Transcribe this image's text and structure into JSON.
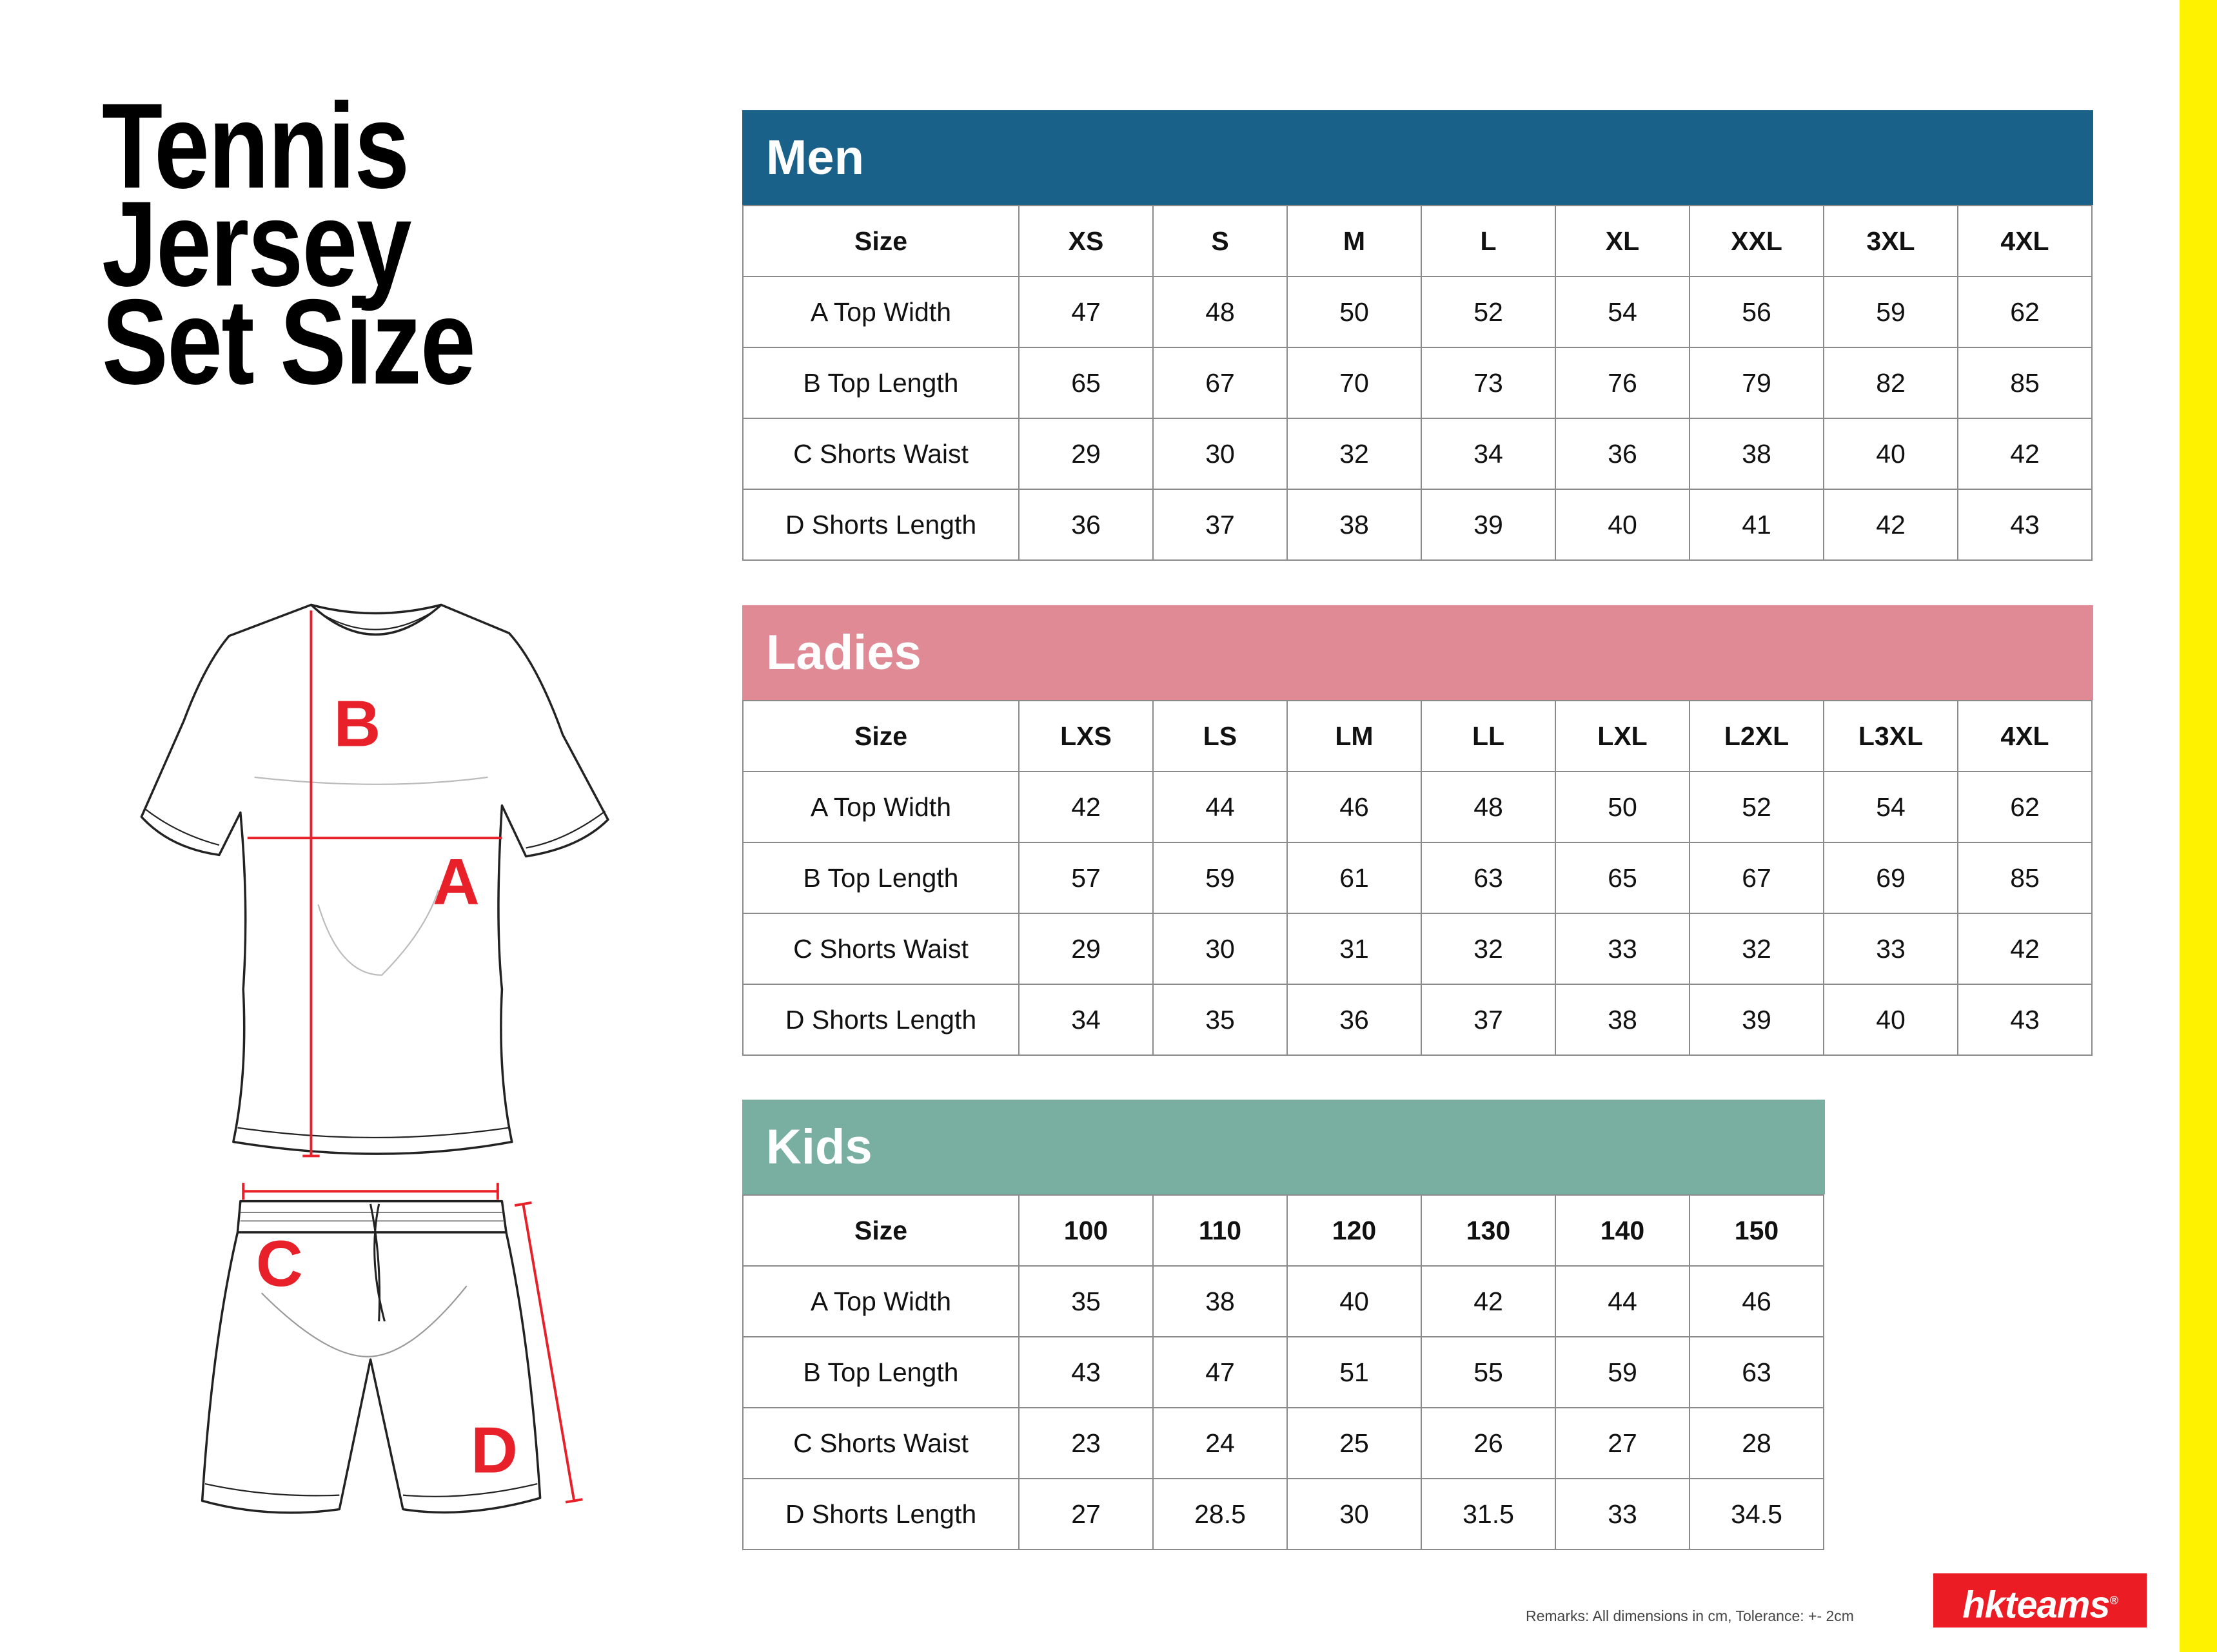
{
  "title": {
    "line1": "Tennis",
    "line2": "Jersey",
    "line3": "Set Size"
  },
  "illustration": {
    "labels": [
      "A",
      "B",
      "C",
      "D"
    ],
    "marker_color": "#e8202a"
  },
  "tables": [
    {
      "id": "men",
      "name": "Men",
      "color": "#1a6189",
      "header": [
        "Size",
        "XS",
        "S",
        "M",
        "L",
        "XL",
        "XXL",
        "3XL",
        "4XL"
      ],
      "rows": [
        [
          "A Top Width",
          "47",
          "48",
          "50",
          "52",
          "54",
          "56",
          "59",
          "62"
        ],
        [
          "B Top Length",
          "65",
          "67",
          "70",
          "73",
          "76",
          "79",
          "82",
          "85"
        ],
        [
          "C Shorts Waist",
          "29",
          "30",
          "32",
          "34",
          "36",
          "38",
          "40",
          "42"
        ],
        [
          "D Shorts Length",
          "36",
          "37",
          "38",
          "39",
          "40",
          "41",
          "42",
          "43"
        ]
      ]
    },
    {
      "id": "ladies",
      "name": "Ladies",
      "color": "#e08a96",
      "header": [
        "Size",
        "LXS",
        "LS",
        "LM",
        "LL",
        "LXL",
        "L2XL",
        "L3XL",
        "4XL"
      ],
      "rows": [
        [
          "A Top Width",
          "42",
          "44",
          "46",
          "48",
          "50",
          "52",
          "54",
          "62"
        ],
        [
          "B Top Length",
          "57",
          "59",
          "61",
          "63",
          "65",
          "67",
          "69",
          "85"
        ],
        [
          "C Shorts Waist",
          "29",
          "30",
          "31",
          "32",
          "33",
          "32",
          "33",
          "42"
        ],
        [
          "D Shorts Length",
          "34",
          "35",
          "36",
          "37",
          "38",
          "39",
          "40",
          "43"
        ]
      ]
    },
    {
      "id": "kids",
      "name": "Kids",
      "color": "#78afa0",
      "header": [
        "Size",
        "100",
        "110",
        "120",
        "130",
        "140",
        "150"
      ],
      "rows": [
        [
          "A Top Width",
          "35",
          "38",
          "40",
          "42",
          "44",
          "46"
        ],
        [
          "B Top Length",
          "43",
          "47",
          "51",
          "55",
          "59",
          "63"
        ],
        [
          "C Shorts Waist",
          "23",
          "24",
          "25",
          "26",
          "27",
          "28"
        ],
        [
          "D Shorts Length",
          "27",
          "28.5",
          "30",
          "31.5",
          "33",
          "34.5"
        ]
      ]
    }
  ],
  "remarks": "Remarks: All dimensions in cm, Tolerance: +- 2cm",
  "logo": {
    "text": "hkteams",
    "mark": "®",
    "color": "#ec1c24"
  },
  "accent_strip_color": "#fff200"
}
